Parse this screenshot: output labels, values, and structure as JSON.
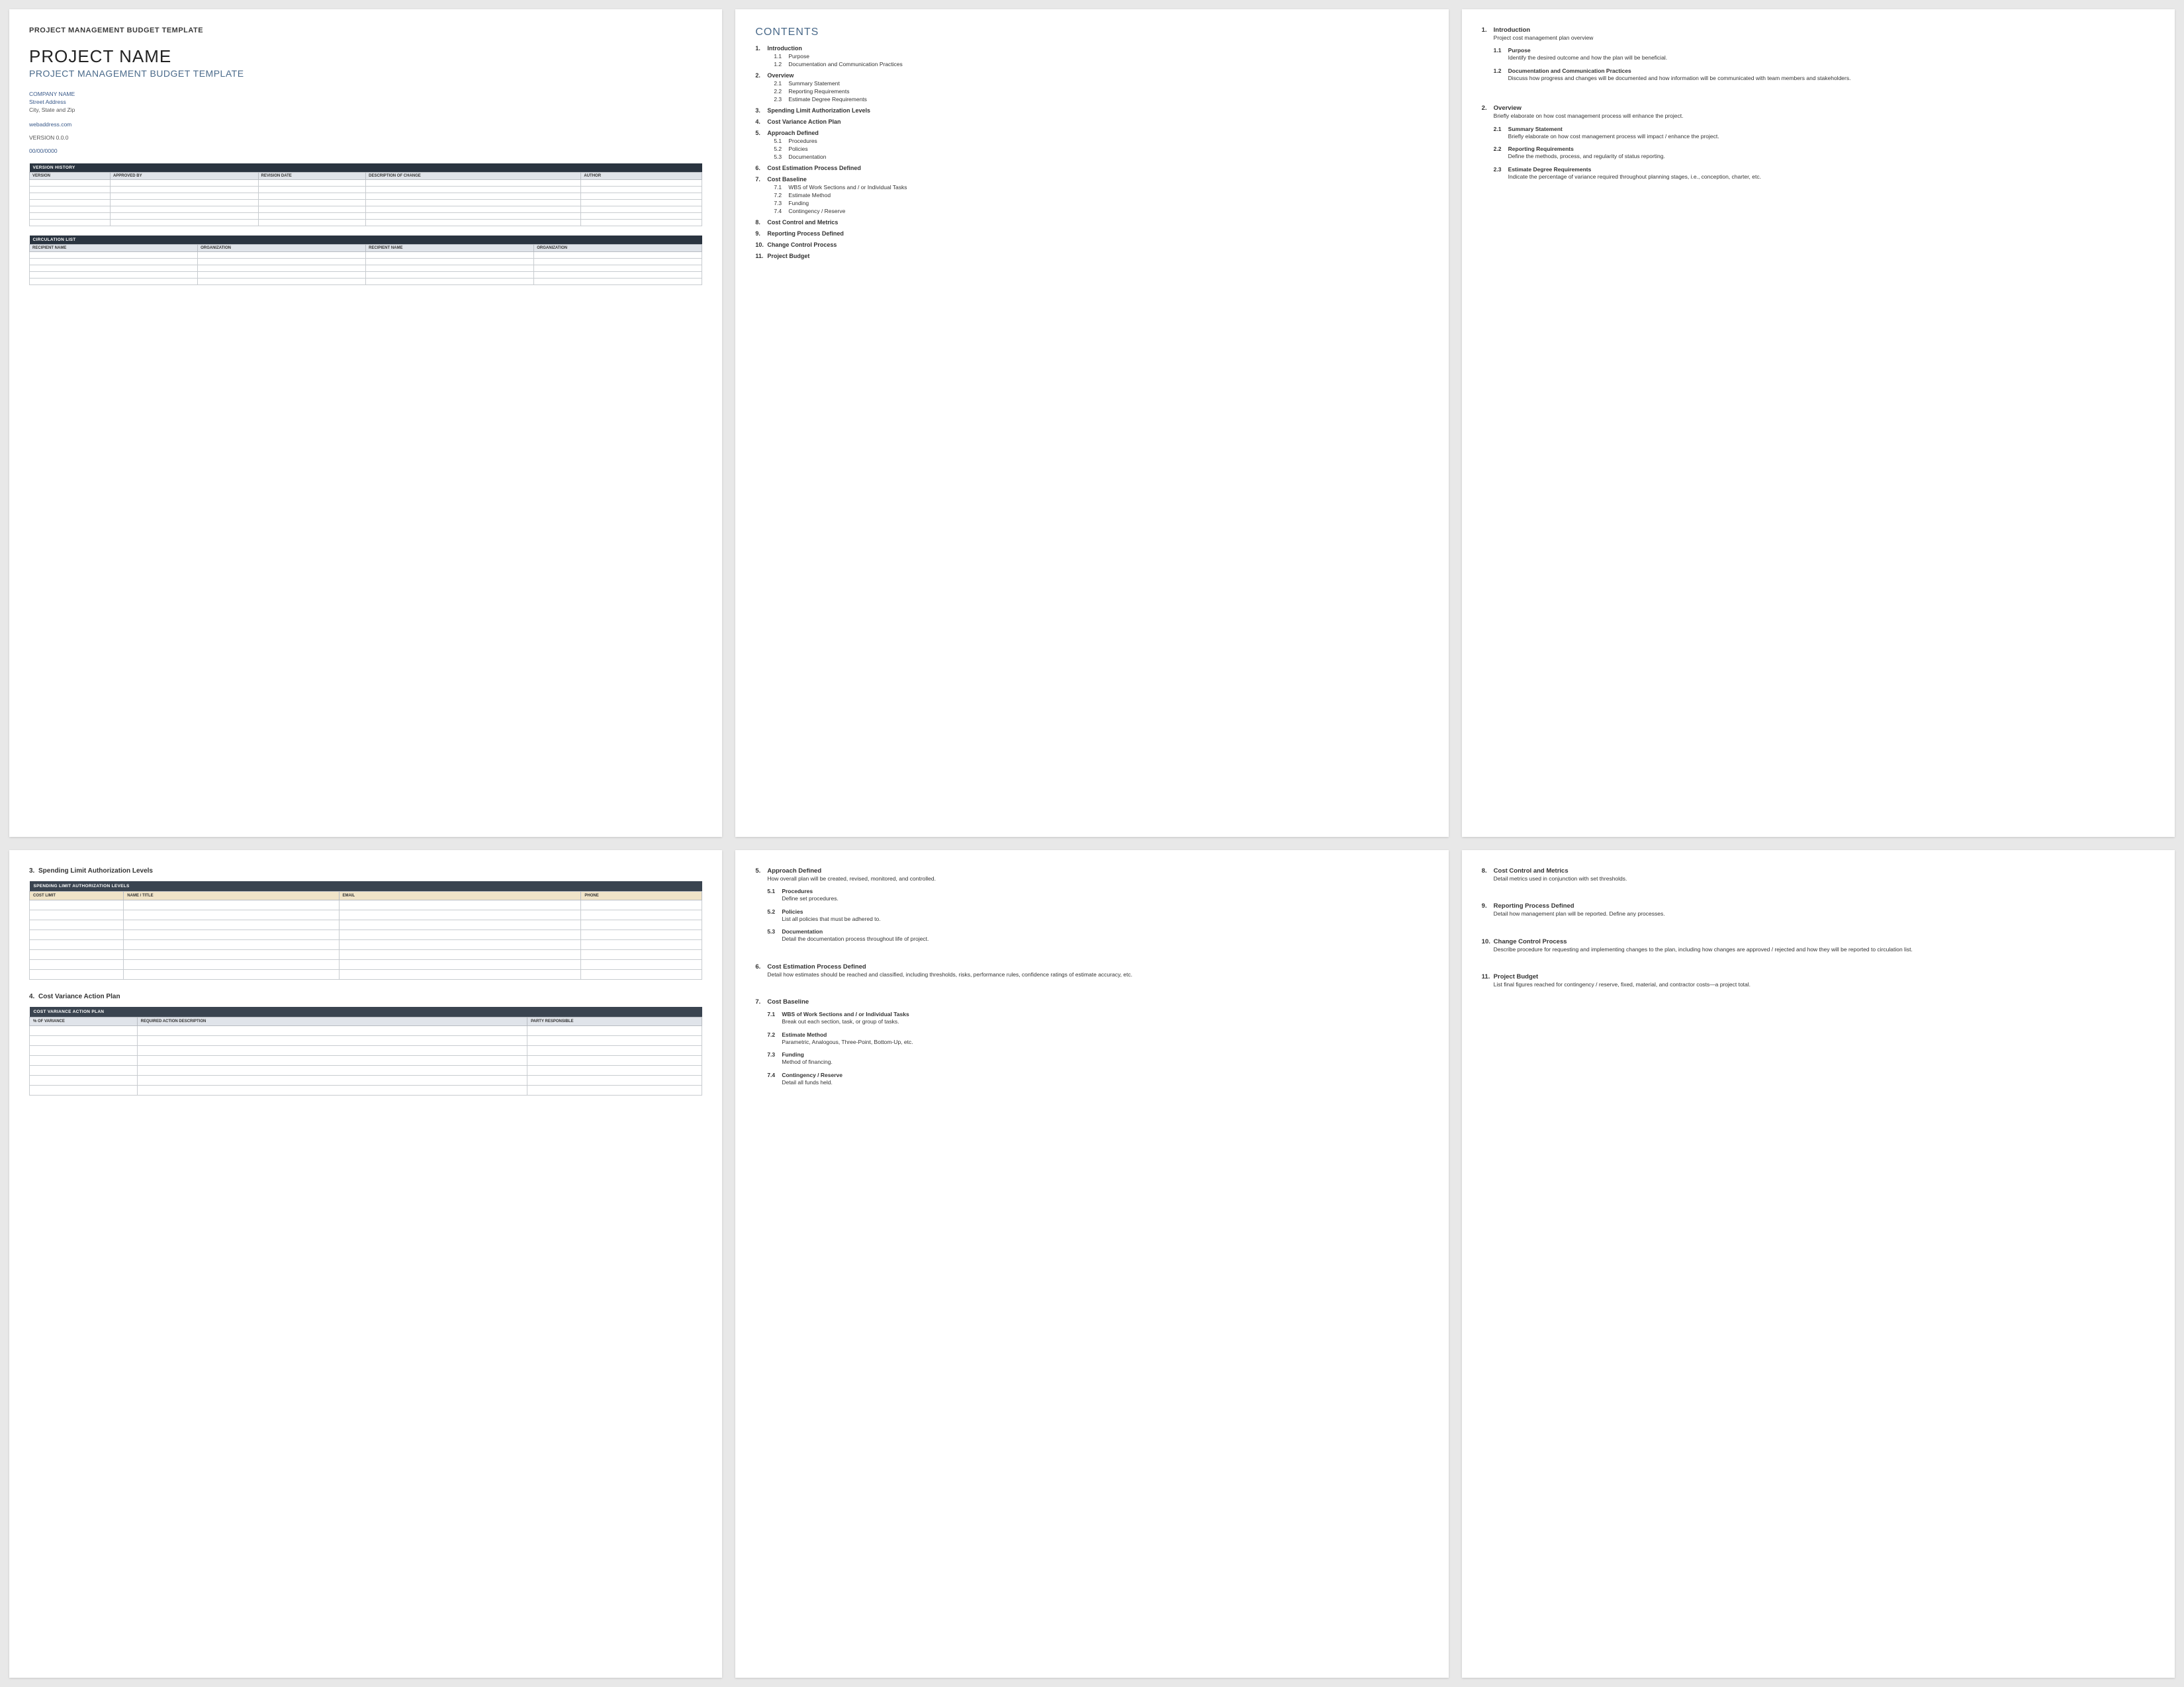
{
  "page1": {
    "small_heading": "PROJECT MANAGEMENT BUDGET TEMPLATE",
    "big_title": "PROJECT NAME",
    "sub_title": "PROJECT MANAGEMENT BUDGET TEMPLATE",
    "company": "COMPANY NAME",
    "street": "Street Address",
    "city": "City, State and Zip",
    "web": "webaddress.com",
    "version": "VERSION 0.0.0",
    "date": "00/00/0000",
    "vh_bar": "VERSION HISTORY",
    "vh_cols": [
      "VERSION",
      "APPROVED BY",
      "REVISION DATE",
      "DESCRIPTION OF CHANGE",
      "AUTHOR"
    ],
    "cl_bar": "CIRCULATION LIST",
    "cl_cols": [
      "RECIPIENT NAME",
      "ORGANIZATION",
      "RECIPIENT NAME",
      "ORGANIZATION"
    ]
  },
  "contents": {
    "title": "CONTENTS",
    "items": [
      {
        "n": "1.",
        "t": "Introduction",
        "sub": [
          {
            "n": "1.1",
            "t": "Purpose"
          },
          {
            "n": "1.2",
            "t": "Documentation and Communication Practices"
          }
        ]
      },
      {
        "n": "2.",
        "t": "Overview",
        "sub": [
          {
            "n": "2.1",
            "t": "Summary Statement"
          },
          {
            "n": "2.2",
            "t": "Reporting Requirements"
          },
          {
            "n": "2.3",
            "t": "Estimate Degree Requirements"
          }
        ]
      },
      {
        "n": "3.",
        "t": "Spending Limit Authorization Levels"
      },
      {
        "n": "4.",
        "t": "Cost Variance Action Plan"
      },
      {
        "n": "5.",
        "t": "Approach Defined",
        "sub": [
          {
            "n": "5.1",
            "t": "Procedures"
          },
          {
            "n": "5.2",
            "t": "Policies"
          },
          {
            "n": "5.3",
            "t": "Documentation"
          }
        ]
      },
      {
        "n": "6.",
        "t": "Cost Estimation Process Defined"
      },
      {
        "n": "7.",
        "t": "Cost Baseline",
        "sub": [
          {
            "n": "7.1",
            "t": "WBS of Work Sections and / or Individual Tasks"
          },
          {
            "n": "7.2",
            "t": "Estimate Method"
          },
          {
            "n": "7.3",
            "t": "Funding"
          },
          {
            "n": "7.4",
            "t": "Contingency / Reserve"
          }
        ]
      },
      {
        "n": "8.",
        "t": "Cost Control and Metrics"
      },
      {
        "n": "9.",
        "t": "Reporting Process Defined"
      },
      {
        "n": "10.",
        "t": "Change Control Process"
      },
      {
        "n": "11.",
        "t": "Project Budget"
      }
    ]
  },
  "page3": {
    "s1": {
      "n": "1.",
      "t": "Introduction",
      "d": "Project cost management plan overview",
      "sub": [
        {
          "n": "1.1",
          "t": "Purpose",
          "d": "Identify the desired outcome and how the plan will be beneficial."
        },
        {
          "n": "1.2",
          "t": "Documentation and Communication Practices",
          "d": "Discuss how progress and changes will be documented and how information will be communicated with team members and stakeholders."
        }
      ]
    },
    "s2": {
      "n": "2.",
      "t": "Overview",
      "d": "Briefly elaborate on how cost management process will enhance the project.",
      "sub": [
        {
          "n": "2.1",
          "t": "Summary Statement",
          "d": "Briefly elaborate on how cost management process will impact / enhance the project."
        },
        {
          "n": "2.2",
          "t": "Reporting Requirements",
          "d": "Define the methods, process, and regularity of status reporting."
        },
        {
          "n": "2.3",
          "t": "Estimate Degree Requirements",
          "d": "Indicate the percentage of variance required throughout planning stages, i.e., conception, charter, etc."
        }
      ]
    }
  },
  "page4": {
    "h1": {
      "n": "3.",
      "t": "Spending Limit Authorization Levels"
    },
    "t1_bar": "SPENDING LIMIT AUTHORIZATION LEVELS",
    "t1_cols": [
      "COST LIMIT",
      "NAME / TITLE",
      "EMAIL",
      "PHONE"
    ],
    "h2": {
      "n": "4.",
      "t": "Cost Variance Action Plan"
    },
    "t2_bar": "COST VARIANCE ACTION PLAN",
    "t2_cols": [
      "% OF VARIANCE",
      "REQUIRED ACTION DESCRIPTION",
      "PARTY RESPONSIBLE"
    ]
  },
  "page5": {
    "s5": {
      "n": "5.",
      "t": "Approach Defined",
      "d": "How overall plan will be created, revised, monitored, and controlled.",
      "sub": [
        {
          "n": "5.1",
          "t": "Procedures",
          "d": "Define set procedures."
        },
        {
          "n": "5.2",
          "t": "Policies",
          "d": "List all policies that must be adhered to."
        },
        {
          "n": "5.3",
          "t": "Documentation",
          "d": "Detail the documentation process throughout life of project."
        }
      ]
    },
    "s6": {
      "n": "6.",
      "t": "Cost Estimation Process Defined",
      "d": "Detail how estimates should be reached and classified, including thresholds, risks, performance rules, confidence ratings of estimate accuracy, etc."
    },
    "s7": {
      "n": "7.",
      "t": "Cost Baseline",
      "sub": [
        {
          "n": "7.1",
          "t": "WBS of Work Sections and / or Individual Tasks",
          "d": "Break out each section, task, or group of tasks."
        },
        {
          "n": "7.2",
          "t": "Estimate Method",
          "d": "Parametric, Analogous, Three-Point, Bottom-Up, etc."
        },
        {
          "n": "7.3",
          "t": "Funding",
          "d": "Method of financing."
        },
        {
          "n": "7.4",
          "t": "Contingency / Reserve",
          "d": "Detail all funds held."
        }
      ]
    }
  },
  "page6": {
    "s8": {
      "n": "8.",
      "t": "Cost Control and Metrics",
      "d": "Detail metrics used in conjunction with set thresholds."
    },
    "s9": {
      "n": "9.",
      "t": "Reporting Process Defined",
      "d": "Detail how management plan will be reported. Define any processes."
    },
    "s10": {
      "n": "10.",
      "t": "Change Control Process",
      "d": "Describe procedure for requesting and implementing changes to the plan, including how changes are approved / rejected and how they will be reported to circulation list."
    },
    "s11": {
      "n": "11.",
      "t": "Project Budget",
      "d": "List final figures reached for contingency / reserve, fixed, material, and contractor costs—a project total."
    }
  },
  "style": {
    "page_bg": "#ffffff",
    "body_bg": "#e8e8e8",
    "accent_blue": "#4a6a8a",
    "dark_bar": "#2a3440",
    "header_row": "#e0e4ea",
    "tan_row": "#f0e4c8",
    "border": "#c8ccd0"
  }
}
